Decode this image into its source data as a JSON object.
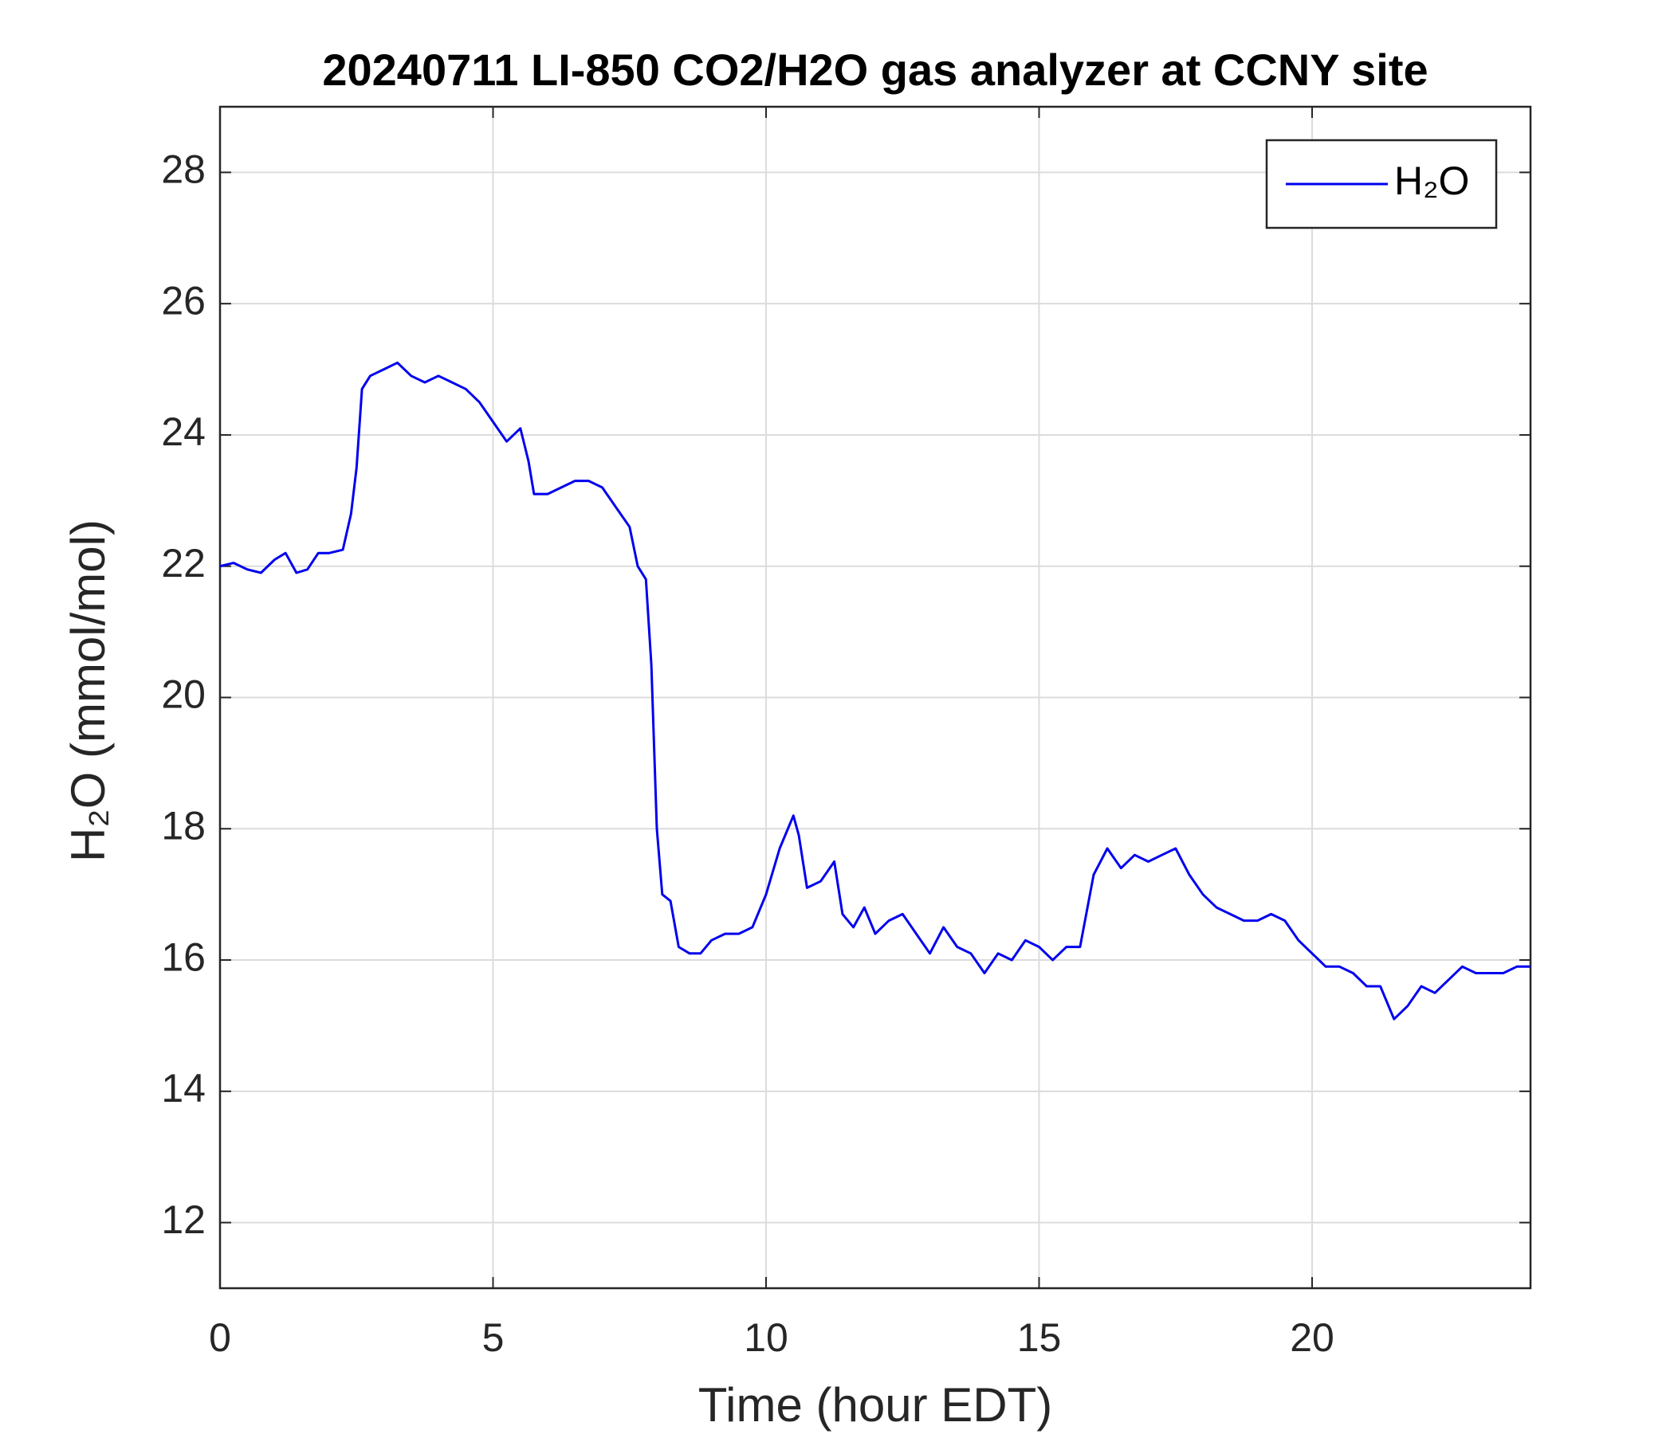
{
  "chart_data": {
    "type": "line",
    "title": "20240711 LI-850 CO2/H2O gas analyzer at CCNY site",
    "x_label": "Time (hour EDT)",
    "y_label": "H₂O (mmol/mol)",
    "x": [
      0,
      0.25,
      0.5,
      0.75,
      1.0,
      1.2,
      1.4,
      1.6,
      1.8,
      2.0,
      2.25,
      2.4,
      2.5,
      2.6,
      2.75,
      3.0,
      3.25,
      3.5,
      3.75,
      4.0,
      4.25,
      4.5,
      4.75,
      5.0,
      5.25,
      5.5,
      5.65,
      5.75,
      6.0,
      6.25,
      6.5,
      6.75,
      7.0,
      7.25,
      7.5,
      7.65,
      7.8,
      7.9,
      8.0,
      8.1,
      8.25,
      8.4,
      8.6,
      8.8,
      9.0,
      9.25,
      9.5,
      9.75,
      10.0,
      10.25,
      10.5,
      10.6,
      10.75,
      11.0,
      11.25,
      11.4,
      11.6,
      11.8,
      12.0,
      12.25,
      12.5,
      12.75,
      13.0,
      13.25,
      13.5,
      13.75,
      14.0,
      14.25,
      14.5,
      14.75,
      15.0,
      15.25,
      15.5,
      15.75,
      16.0,
      16.25,
      16.5,
      16.75,
      17.0,
      17.25,
      17.5,
      17.75,
      18.0,
      18.25,
      18.5,
      18.75,
      19.0,
      19.25,
      19.5,
      19.75,
      20.0,
      20.25,
      20.5,
      20.75,
      21.0,
      21.25,
      21.5,
      21.75,
      22.0,
      22.25,
      22.5,
      22.75,
      23.0,
      23.25,
      23.5,
      23.75,
      24.0
    ],
    "series": [
      {
        "name": "H₂O",
        "color": "#0000ee",
        "values": [
          22.0,
          22.05,
          21.95,
          21.9,
          22.1,
          22.2,
          21.9,
          21.95,
          22.2,
          22.2,
          22.25,
          22.8,
          23.5,
          24.7,
          24.9,
          25.0,
          25.1,
          24.9,
          24.8,
          24.9,
          24.8,
          24.7,
          24.5,
          24.2,
          23.9,
          24.1,
          23.6,
          23.1,
          23.1,
          23.2,
          23.3,
          23.3,
          23.2,
          22.9,
          22.6,
          22.0,
          21.8,
          20.5,
          18.0,
          17.0,
          16.9,
          16.2,
          16.1,
          16.1,
          16.3,
          16.4,
          16.4,
          16.5,
          17.0,
          17.7,
          18.2,
          17.9,
          17.1,
          17.2,
          17.5,
          16.7,
          16.5,
          16.8,
          16.4,
          16.6,
          16.7,
          16.4,
          16.1,
          16.5,
          16.2,
          16.1,
          15.8,
          16.1,
          16.0,
          16.3,
          16.2,
          16.0,
          16.2,
          16.2,
          17.3,
          17.7,
          17.4,
          17.6,
          17.5,
          17.6,
          17.7,
          17.3,
          17.0,
          16.8,
          16.7,
          16.6,
          16.6,
          16.7,
          16.6,
          16.3,
          16.1,
          15.9,
          15.9,
          15.8,
          15.6,
          15.6,
          15.1,
          15.3,
          15.6,
          15.5,
          15.7,
          15.9,
          15.8,
          15.8,
          15.8,
          15.9,
          15.9
        ]
      }
    ],
    "xlim": [
      0,
      24
    ],
    "xticks": [
      0,
      5,
      10,
      15,
      20
    ],
    "ylim": [
      11,
      29
    ],
    "yticks": [
      12,
      14,
      16,
      18,
      20,
      22,
      24,
      26,
      28
    ],
    "grid": true,
    "legend": "upper right"
  }
}
